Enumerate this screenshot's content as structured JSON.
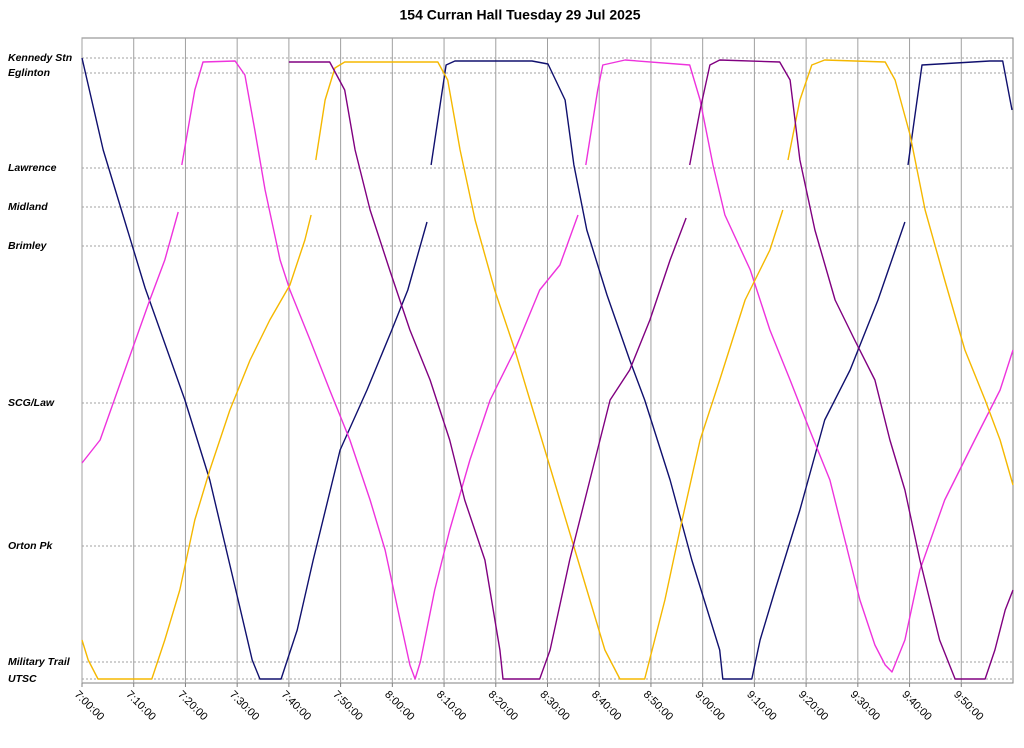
{
  "chart_data": {
    "type": "line",
    "title": "154 Curran Hall Tuesday 29 Jul 2025",
    "xlim": [
      420,
      600
    ],
    "xticks": [
      {
        "value": 420,
        "label": "7:00:00"
      },
      {
        "value": 430,
        "label": "7:10:00"
      },
      {
        "value": 440,
        "label": "7:20:00"
      },
      {
        "value": 450,
        "label": "7:30:00"
      },
      {
        "value": 460,
        "label": "7:40:00"
      },
      {
        "value": 470,
        "label": "7:50:00"
      },
      {
        "value": 480,
        "label": "8:00:00"
      },
      {
        "value": 490,
        "label": "8:10:00"
      },
      {
        "value": 500,
        "label": "8:20:00"
      },
      {
        "value": 510,
        "label": "8:30:00"
      },
      {
        "value": 520,
        "label": "8:40:00"
      },
      {
        "value": 530,
        "label": "8:50:00"
      },
      {
        "value": 540,
        "label": "9:00:00"
      },
      {
        "value": 550,
        "label": "9:10:00"
      },
      {
        "value": 560,
        "label": "9:20:00"
      },
      {
        "value": 570,
        "label": "9:30:00"
      },
      {
        "value": 580,
        "label": "9:40:00"
      },
      {
        "value": 590,
        "label": "9:50:00"
      }
    ],
    "ylim": [
      -4,
      641
    ],
    "yticks": [
      {
        "value": 621,
        "label": "Kennedy Stn"
      },
      {
        "value": 606,
        "label": "Eglinton"
      },
      {
        "value": 511,
        "label": "Lawrence"
      },
      {
        "value": 472,
        "label": "Midland"
      },
      {
        "value": 433,
        "label": "Brimley"
      },
      {
        "value": 276,
        "label": "SCG/Law"
      },
      {
        "value": 133,
        "label": "Orton Pk"
      },
      {
        "value": 17,
        "label": "Military Trail"
      },
      {
        "value": 0,
        "label": "UTSC"
      }
    ],
    "grid": true,
    "series": [
      {
        "color": "#10106e",
        "x": [
          420,
          424.1,
          432.2,
          439.9,
          444.7,
          450.0,
          452.9,
          454.4,
          458.5,
          461.6,
          464.7,
          469.9,
          475.1,
          479.9,
          483.0,
          486.7,
          null,
          487.5,
          490.4,
          492.1,
          507.0,
          510.1,
          513.4,
          515.1,
          517.6,
          521.5,
          525.9,
          528.8,
          533.7,
          537.9,
          543.3,
          543.9,
          549.5,
          551.1,
          554.0,
          558.8,
          563.6,
          568.5,
          573.9,
          579.1,
          null,
          579.7,
          582.4,
          595.5,
          598.0,
          599.8
        ],
        "values": [
          621,
          529,
          391,
          279,
          199,
          83,
          19,
          0,
          0,
          49,
          119,
          229,
          289,
          349,
          389,
          457,
          null,
          514,
          614,
          618,
          618,
          615,
          579,
          514,
          449,
          384,
          319,
          279,
          199,
          119,
          29,
          0,
          0,
          39,
          89,
          169,
          259,
          309,
          379,
          457,
          null,
          514,
          614,
          618,
          618,
          569
        ]
      },
      {
        "color": "#ee33dd",
        "x": [
          420,
          423.5,
          428.3,
          433.1,
          436.0,
          438.6,
          null,
          439.3,
          441.8,
          443.4,
          449.6,
          451.5,
          453.4,
          455.4,
          458.3,
          460.2,
          464.1,
          467.9,
          471.8,
          475.7,
          478.6,
          481.5,
          483.4,
          484.4,
          485.4,
          488.2,
          491.1,
          495.0,
          498.9,
          503.7,
          508.5,
          512.4,
          515.9,
          null,
          517.4,
          519.7,
          520.7,
          525.0,
          537.5,
          539.5,
          542.0,
          544.3,
          549.2,
          553.0,
          556.9,
          560.7,
          564.6,
          567.5,
          570.4,
          573.3,
          575.3,
          576.6,
          579.1,
          582.0,
          586.8,
          592.6,
          597.5,
          600
        ],
        "values": [
          216,
          239,
          309,
          379,
          419,
          467,
          null,
          514,
          589,
          617,
          618,
          604,
          549,
          489,
          419,
          389,
          339,
          289,
          239,
          179,
          129,
          59,
          14,
          0,
          17,
          89,
          149,
          219,
          279,
          329,
          389,
          414,
          464,
          null,
          514,
          589,
          614,
          619,
          614,
          579,
          514,
          464,
          409,
          349,
          299,
          249,
          199,
          139,
          79,
          34,
          14,
          7,
          39,
          109,
          179,
          239,
          289,
          329
        ]
      },
      {
        "color": "#f5b800",
        "x": [
          420,
          421.2,
          423.1,
          433.5,
          436.0,
          438.9,
          441.8,
          444.7,
          448.6,
          452.5,
          456.3,
          460.2,
          463.1,
          464.3,
          null,
          465.2,
          467.0,
          468.9,
          470.8,
          488.8,
          490.7,
          493.1,
          496.0,
          499.8,
          503.7,
          506.6,
          509.5,
          512.4,
          515.3,
          518.2,
          521.1,
          524.0,
          528.8,
          532.7,
          535.6,
          539.5,
          543.3,
          548.2,
          553.0,
          555.5,
          null,
          556.5,
          558.8,
          561.1,
          563.6,
          575.3,
          577.2,
          580.1,
          583.0,
          586.8,
          590.7,
          594.6,
          597.5,
          600
        ],
        "values": [
          39,
          19,
          0,
          0,
          39,
          89,
          159,
          209,
          269,
          319,
          359,
          394,
          439,
          464,
          null,
          519,
          579,
          611,
          617,
          617,
          599,
          529,
          459,
          389,
          329,
          279,
          229,
          179,
          129,
          79,
          29,
          0,
          0,
          79,
          149,
          239,
          299,
          379,
          429,
          469,
          null,
          519,
          579,
          614,
          619,
          617,
          599,
          544,
          469,
          399,
          329,
          279,
          239,
          194
        ]
      },
      {
        "color": "#800080",
        "x": [
          460.0,
          467.9,
          470.8,
          472.8,
          475.7,
          479.5,
          483.4,
          487.3,
          491.1,
          494.0,
          497.9,
          500.8,
          501.4,
          508.5,
          510.5,
          514.3,
          518.2,
          522.1,
          525.9,
          529.8,
          533.7,
          536.8,
          null,
          537.5,
          539.5,
          541.4,
          543.3,
          554.9,
          556.9,
          558.8,
          561.7,
          565.6,
          569.4,
          573.3,
          576.2,
          579.1,
          582.0,
          585.8,
          588.8,
          594.6,
          596.5,
          598.5,
          600
        ],
        "values": [
          617,
          617,
          589,
          529,
          469,
          409,
          349,
          299,
          239,
          179,
          119,
          29,
          0,
          0,
          29,
          119,
          199,
          279,
          309,
          359,
          419,
          461,
          null,
          514,
          569,
          614,
          619,
          617,
          599,
          519,
          449,
          379,
          339,
          299,
          239,
          189,
          119,
          39,
          0,
          0,
          29,
          69,
          89
        ]
      }
    ]
  }
}
